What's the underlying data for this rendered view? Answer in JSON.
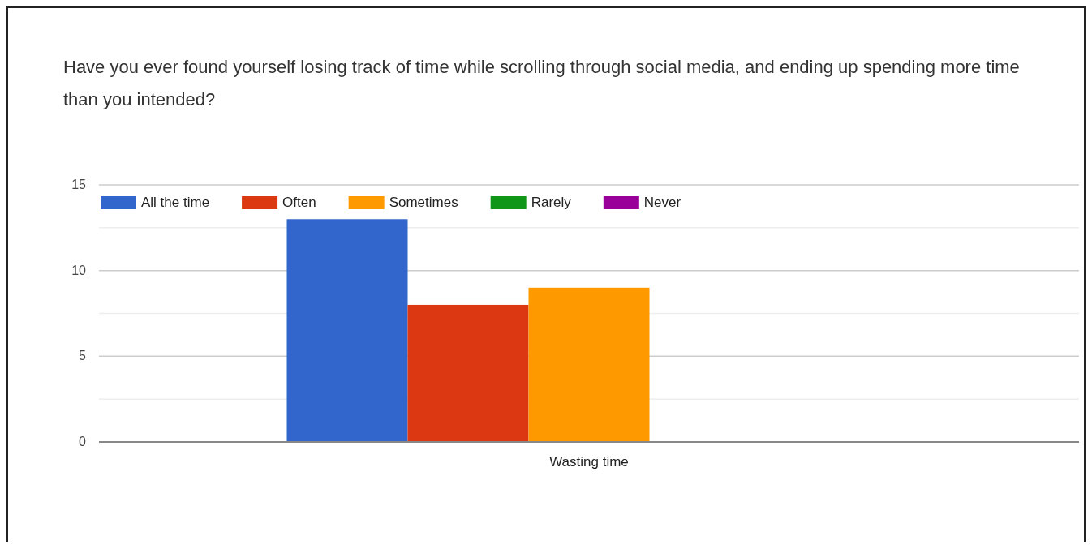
{
  "chart_data": {
    "type": "bar",
    "title": "Have you ever found yourself losing track of time while scrolling through social media, and ending up spending more time than you intended?",
    "categories": [
      "Wasting time"
    ],
    "series": [
      {
        "name": "All the time",
        "color": "#3366cc",
        "values": [
          13
        ]
      },
      {
        "name": "Often",
        "color": "#dc3912",
        "values": [
          8
        ]
      },
      {
        "name": "Sometimes",
        "color": "#ff9900",
        "values": [
          9
        ]
      },
      {
        "name": "Rarely",
        "color": "#109618",
        "values": [
          0
        ]
      },
      {
        "name": "Never",
        "color": "#990099",
        "values": [
          0
        ]
      }
    ],
    "ylim": [
      0,
      15
    ],
    "yticks": [
      0,
      {
        "value": 2.5,
        "label": null
      },
      5,
      {
        "value": 7.5,
        "label": null
      },
      10,
      {
        "value": 12.5,
        "label": null
      },
      15
    ],
    "grid": true,
    "legend": "top left"
  }
}
